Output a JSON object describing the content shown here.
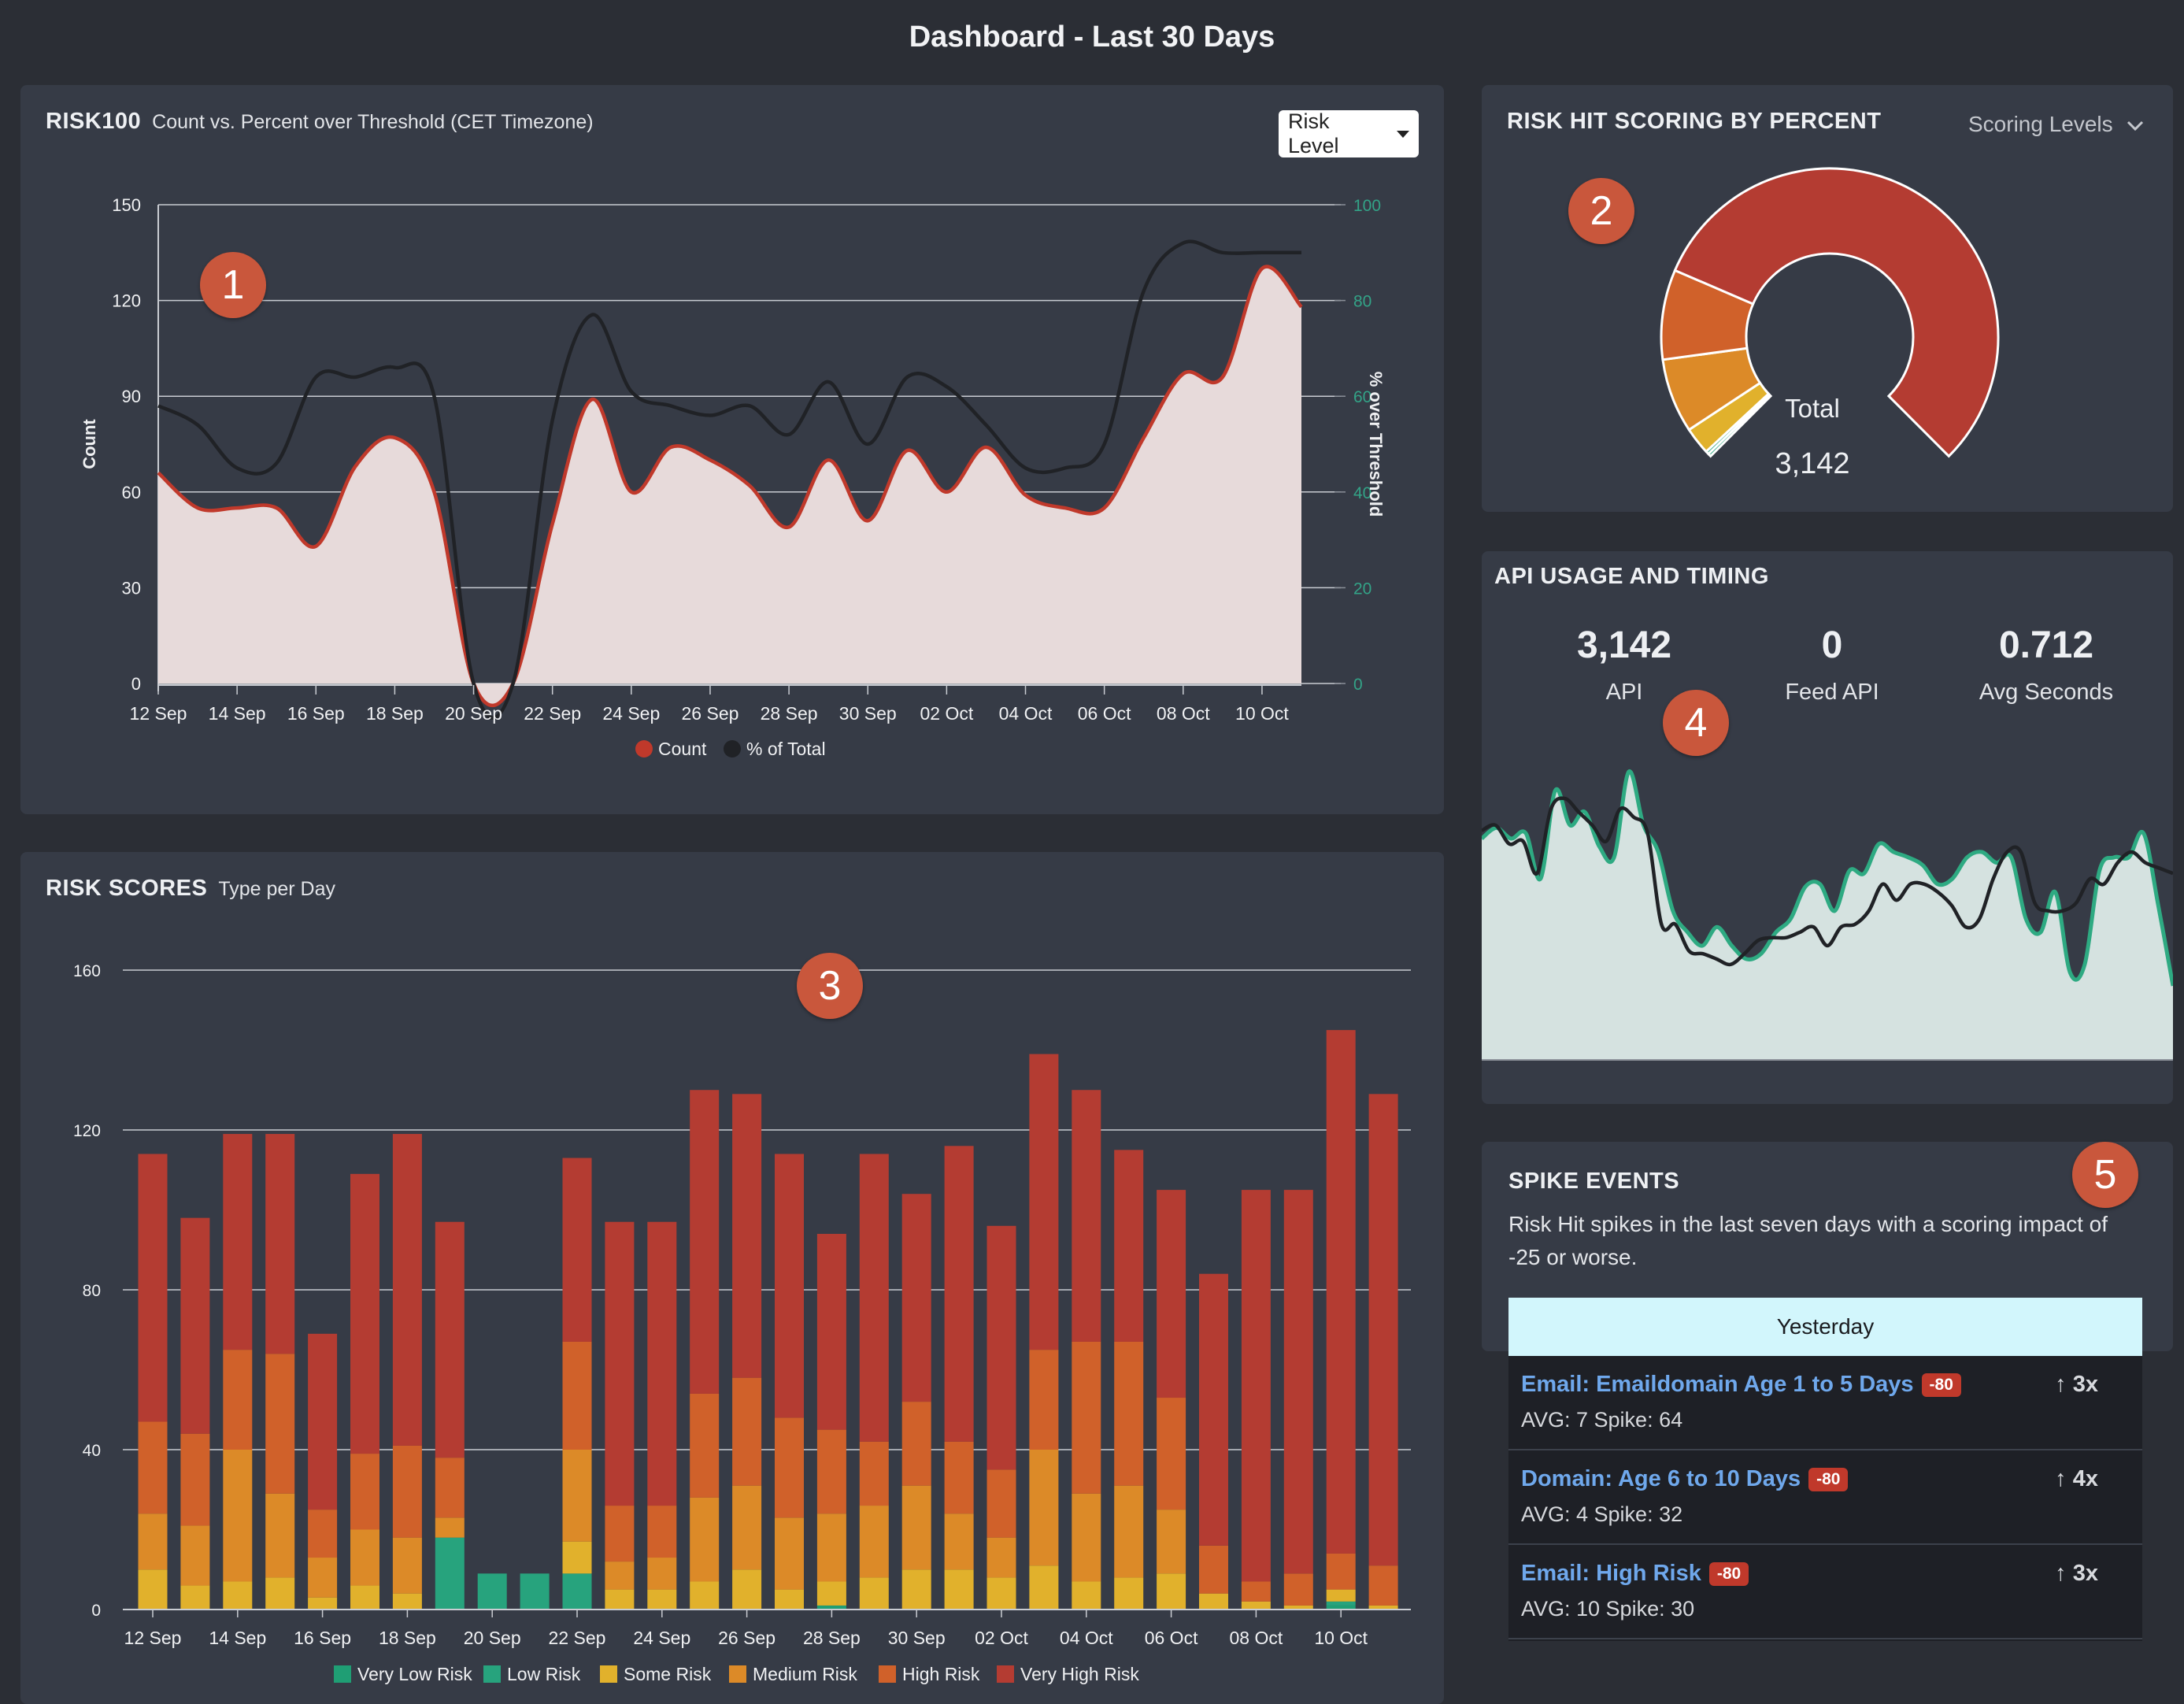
{
  "page": {
    "title": "Dashboard - Last 30 Days"
  },
  "risk100": {
    "title": "RISK100",
    "subtitle": "Count vs. Percent over Threshold (CET Timezone)",
    "dropdown_label": "Risk Level",
    "badge": "1"
  },
  "scoring": {
    "title": "RISK HIT SCORING BY PERCENT",
    "levels_label": "Scoring Levels",
    "total_label": "Total",
    "total_value": "3,142",
    "badge": "2"
  },
  "risk_scores": {
    "title": "RISK SCORES",
    "subtitle": "Type per Day",
    "badge": "3"
  },
  "api": {
    "title": "API USAGE AND TIMING",
    "stats": [
      {
        "value": "3,142",
        "label": "API"
      },
      {
        "value": "0",
        "label": "Feed API"
      },
      {
        "value": "0.712",
        "label": "Avg Seconds"
      }
    ],
    "badge": "4",
    "spark_a": [
      75,
      79,
      75,
      77,
      60,
      93,
      80,
      85,
      72,
      68,
      100,
      80,
      70,
      48,
      40,
      35,
      42,
      35,
      30,
      32,
      40,
      45,
      57,
      58,
      48,
      63,
      62,
      73,
      70,
      68,
      65,
      58,
      60,
      68,
      70,
      66,
      68,
      45,
      40,
      55,
      25,
      28,
      63,
      68,
      68,
      77,
      50,
      20
    ],
    "spark_b": [
      78,
      80,
      73,
      74,
      62,
      86,
      90,
      85,
      80,
      74,
      86,
      83,
      77,
      43,
      43,
      33,
      32,
      30,
      28,
      32,
      37,
      38,
      38,
      40,
      42,
      35,
      42,
      43,
      48,
      58,
      52,
      58,
      58,
      55,
      50,
      42,
      45,
      60,
      70,
      70,
      51,
      48,
      48,
      51,
      60,
      58,
      66,
      70,
      66,
      64,
      62
    ]
  },
  "spike": {
    "title": "SPIKE EVENTS",
    "description": "Risk Hit spikes in the last seven days with a scoring impact of -25 or worse.",
    "header": "Yesterday",
    "badge": "5",
    "rows": [
      {
        "name": "Email: Emaildomain Age 1 to 5 Days",
        "impact": "-80",
        "multiplier": "↑ 3x",
        "detail": "AVG: 7 Spike: 64"
      },
      {
        "name": "Domain: Age 6 to 10 Days",
        "impact": "-80",
        "multiplier": "↑ 4x",
        "detail": "AVG: 4 Spike: 32"
      },
      {
        "name": "Email: High Risk",
        "impact": "-80",
        "multiplier": "↑ 3x",
        "detail": "AVG: 10 Spike: 30"
      }
    ]
  },
  "colors": {
    "count_line": "#c0392b",
    "count_fill": "#e7dada",
    "pct_line": "#202226",
    "api_line": "#2eaa82",
    "api_fill": "#d5e2e0",
    "very_low": "#1f9e74",
    "low": "#27a37d",
    "some": "#e1b12c",
    "medium": "#dc8a28",
    "high": "#d0612a",
    "very_high": "#b43c32"
  },
  "chart_data": [
    {
      "type": "area",
      "title": "RISK100",
      "ylabel": "Count",
      "y2label": "% over Threshold",
      "ylim": [
        0,
        150
      ],
      "y2lim": [
        0,
        100
      ],
      "yticks": [
        0,
        30,
        60,
        90,
        120,
        150
      ],
      "y2ticks": [
        0,
        20,
        40,
        60,
        80,
        100
      ],
      "xtick_labels": [
        "12 Sep",
        "14 Sep",
        "16 Sep",
        "18 Sep",
        "20 Sep",
        "22 Sep",
        "24 Sep",
        "26 Sep",
        "28 Sep",
        "30 Sep",
        "02 Oct",
        "04 Oct",
        "06 Oct",
        "08 Oct",
        "10 Oct"
      ],
      "x": [
        "12 Sep",
        "13 Sep",
        "14 Sep",
        "15 Sep",
        "16 Sep",
        "17 Sep",
        "18 Sep",
        "19 Sep",
        "20 Sep",
        "21 Sep",
        "22 Sep",
        "23 Sep",
        "24 Sep",
        "25 Sep",
        "26 Sep",
        "27 Sep",
        "28 Sep",
        "29 Sep",
        "30 Sep",
        "01 Oct",
        "02 Oct",
        "03 Oct",
        "04 Oct",
        "05 Oct",
        "06 Oct",
        "07 Oct",
        "08 Oct",
        "09 Oct",
        "10 Oct",
        "11 Oct"
      ],
      "series": [
        {
          "name": "Count",
          "axis": "left",
          "values": [
            66,
            55,
            55,
            55,
            43,
            68,
            77,
            60,
            0,
            0,
            50,
            89,
            60,
            74,
            70,
            62,
            49,
            70,
            51,
            73,
            60,
            74,
            59,
            55,
            55,
            77,
            97,
            96,
            130,
            118
          ]
        },
        {
          "name": "% of Total",
          "axis": "right",
          "values": [
            58,
            54,
            45,
            46,
            64,
            64,
            66,
            60,
            0,
            0,
            55,
            77,
            61,
            58,
            56,
            58,
            52,
            63,
            50,
            64,
            62,
            54,
            45,
            45,
            50,
            82,
            92,
            90,
            90,
            90
          ]
        }
      ],
      "grid": true,
      "legend": "bottom"
    },
    {
      "type": "pie",
      "title": "RISK HIT SCORING BY PERCENT",
      "categories": [
        "Very Low Risk",
        "Low Risk",
        "Some Risk",
        "Medium Risk",
        "High Risk",
        "Very High Risk"
      ],
      "values": [
        0.4,
        0.4,
        3.5,
        9.5,
        11.5,
        74.7
      ]
    },
    {
      "type": "bar",
      "stacked": true,
      "title": "RISK SCORES",
      "ylim": [
        0,
        160
      ],
      "yticks": [
        0,
        40,
        80,
        120,
        160
      ],
      "xtick_labels": [
        "12 Sep",
        "14 Sep",
        "16 Sep",
        "18 Sep",
        "20 Sep",
        "22 Sep",
        "24 Sep",
        "26 Sep",
        "28 Sep",
        "30 Sep",
        "02 Oct",
        "04 Oct",
        "06 Oct",
        "08 Oct",
        "10 Oct"
      ],
      "categories": [
        "12 Sep",
        "13 Sep",
        "14 Sep",
        "15 Sep",
        "16 Sep",
        "17 Sep",
        "18 Sep",
        "19 Sep",
        "20 Sep",
        "21 Sep",
        "22 Sep",
        "23 Sep",
        "24 Sep",
        "25 Sep",
        "26 Sep",
        "27 Sep",
        "28 Sep",
        "29 Sep",
        "30 Sep",
        "01 Oct",
        "02 Oct",
        "03 Oct",
        "04 Oct",
        "05 Oct",
        "06 Oct",
        "07 Oct",
        "08 Oct",
        "09 Oct",
        "10 Oct",
        "11 Oct"
      ],
      "series": [
        {
          "name": "Very Low Risk",
          "values": [
            0,
            0,
            0,
            0,
            0,
            0,
            0,
            0,
            0,
            0,
            0,
            0,
            0,
            0,
            0,
            0,
            1,
            0,
            0,
            0,
            0,
            0,
            0,
            0,
            0,
            0,
            0,
            0,
            1,
            0
          ]
        },
        {
          "name": "Low Risk",
          "values": [
            0,
            0,
            0,
            0,
            0,
            0,
            0,
            18,
            9,
            9,
            9,
            0,
            0,
            0,
            0,
            0,
            0,
            0,
            0,
            0,
            0,
            0,
            0,
            0,
            0,
            0,
            0,
            0,
            1,
            0
          ]
        },
        {
          "name": "Some Risk",
          "values": [
            10,
            6,
            7,
            8,
            3,
            6,
            4,
            0,
            0,
            0,
            8,
            5,
            5,
            7,
            10,
            5,
            6,
            8,
            10,
            10,
            8,
            11,
            7,
            8,
            9,
            4,
            2,
            1,
            3,
            1
          ]
        },
        {
          "name": "Medium Risk",
          "values": [
            14,
            15,
            33,
            21,
            10,
            14,
            14,
            5,
            0,
            0,
            23,
            7,
            8,
            21,
            21,
            18,
            17,
            18,
            21,
            14,
            10,
            29,
            22,
            23,
            16,
            0,
            0,
            0,
            0,
            0
          ]
        },
        {
          "name": "High Risk",
          "values": [
            23,
            23,
            25,
            35,
            12,
            19,
            23,
            15,
            0,
            0,
            27,
            14,
            13,
            26,
            27,
            25,
            21,
            16,
            21,
            18,
            17,
            25,
            38,
            36,
            28,
            12,
            5,
            8,
            9,
            10
          ]
        },
        {
          "name": "Very High Risk",
          "values": [
            67,
            54,
            54,
            55,
            44,
            70,
            78,
            59,
            0,
            0,
            46,
            71,
            71,
            76,
            71,
            66,
            49,
            72,
            52,
            74,
            61,
            74,
            63,
            48,
            52,
            68,
            98,
            96,
            131,
            118
          ]
        }
      ],
      "grid": true,
      "legend": "bottom"
    },
    {
      "type": "area",
      "title": "API USAGE AND TIMING",
      "series": [
        {
          "name": "API",
          "values": [
            75,
            79,
            75,
            77,
            60,
            93,
            80,
            85,
            72,
            68,
            100,
            80,
            70,
            48,
            40,
            35,
            42,
            35,
            30,
            32,
            40,
            45,
            57,
            58,
            48,
            63,
            62,
            73,
            70,
            68,
            65,
            58,
            60,
            68,
            70,
            66,
            68,
            45,
            40,
            55,
            25,
            28,
            63,
            68,
            68,
            77,
            50,
            20
          ]
        },
        {
          "name": "Avg Seconds",
          "values": [
            78,
            80,
            73,
            74,
            62,
            86,
            90,
            85,
            80,
            74,
            86,
            83,
            77,
            43,
            43,
            33,
            32,
            30,
            28,
            32,
            37,
            38,
            38,
            40,
            42,
            35,
            42,
            43,
            48,
            58,
            52,
            58,
            58,
            55,
            50,
            42,
            45,
            60,
            70,
            70,
            51,
            48,
            48,
            51,
            60,
            58,
            66,
            70,
            66,
            64,
            62
          ]
        }
      ]
    }
  ]
}
